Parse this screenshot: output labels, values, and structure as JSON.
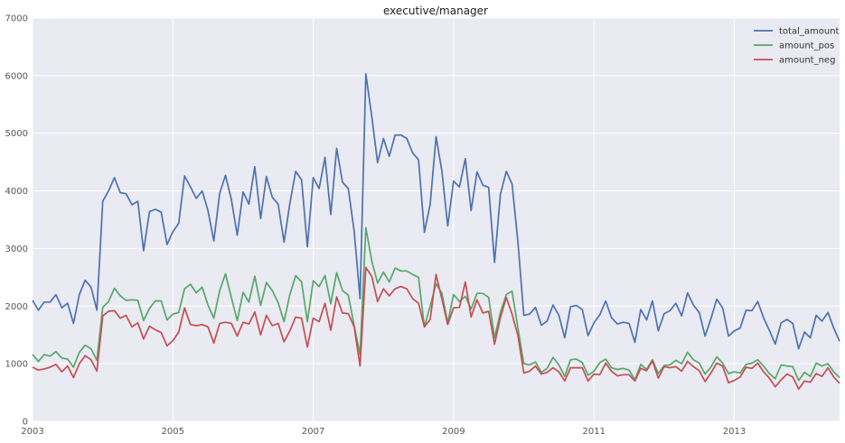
{
  "chart_data": {
    "type": "line",
    "title": "executive/manager",
    "xlabel": "",
    "ylabel": "",
    "xlim": [
      "2003-01",
      "2014-07"
    ],
    "ylim": [
      0,
      7000
    ],
    "grid": true,
    "legend_position": "top-right",
    "x_ticks": [
      "2003",
      "2005",
      "2007",
      "2009",
      "2011",
      "2013"
    ],
    "y_ticks": [
      "0",
      "1000",
      "2000",
      "3000",
      "4000",
      "5000",
      "6000",
      "7000"
    ],
    "x_start": "2003-01",
    "x_frequency": "monthly",
    "series": [
      {
        "name": "total_amount",
        "color": "#4c72b0",
        "values": [
          2100,
          1930,
          2070,
          2070,
          2200,
          1970,
          2050,
          1700,
          2200,
          2450,
          2330,
          1930,
          3820,
          4000,
          4230,
          3970,
          3950,
          3760,
          3820,
          2960,
          3640,
          3680,
          3630,
          3070,
          3290,
          3440,
          4260,
          4070,
          3870,
          4000,
          3660,
          3130,
          3960,
          4270,
          3850,
          3230,
          3980,
          3770,
          4420,
          3520,
          4250,
          3890,
          3770,
          3110,
          3780,
          4340,
          4190,
          3030,
          4230,
          4040,
          4580,
          3590,
          4740,
          4150,
          4040,
          3300,
          2130,
          6030,
          5300,
          4490,
          4910,
          4600,
          4970,
          4970,
          4910,
          4660,
          4540,
          3280,
          3770,
          4940,
          4340,
          3390,
          4170,
          4070,
          4560,
          3660,
          4330,
          4100,
          4060,
          2760,
          3940,
          4340,
          4120,
          3110,
          1840,
          1860,
          1980,
          1670,
          1740,
          2020,
          1840,
          1450,
          1990,
          2010,
          1940,
          1490,
          1710,
          1850,
          2090,
          1800,
          1690,
          1720,
          1700,
          1370,
          1940,
          1760,
          2090,
          1570,
          1870,
          1920,
          2050,
          1830,
          2230,
          2020,
          1890,
          1480,
          1780,
          2120,
          1970,
          1480,
          1570,
          1620,
          1930,
          1920,
          2080,
          1800,
          1580,
          1340,
          1710,
          1770,
          1700,
          1260,
          1550,
          1450,
          1840,
          1740,
          1890,
          1620,
          1390
        ]
      },
      {
        "name": "amount_pos",
        "color": "#55a868",
        "values": [
          1160,
          1040,
          1160,
          1130,
          1210,
          1100,
          1080,
          940,
          1200,
          1320,
          1260,
          1060,
          1980,
          2080,
          2310,
          2180,
          2100,
          2110,
          2100,
          1750,
          1960,
          2090,
          2090,
          1760,
          1860,
          1890,
          2300,
          2380,
          2230,
          2330,
          2020,
          1790,
          2270,
          2560,
          2150,
          1750,
          2240,
          2070,
          2520,
          2010,
          2410,
          2270,
          2060,
          1730,
          2200,
          2530,
          2420,
          1730,
          2440,
          2340,
          2530,
          2040,
          2580,
          2270,
          2190,
          1660,
          1160,
          3360,
          2790,
          2400,
          2590,
          2420,
          2660,
          2610,
          2610,
          2550,
          2500,
          1640,
          2000,
          2390,
          2220,
          1710,
          2200,
          2080,
          2170,
          1950,
          2220,
          2220,
          2150,
          1450,
          1890,
          2200,
          2260,
          1620,
          1000,
          980,
          1030,
          850,
          920,
          1110,
          980,
          780,
          1070,
          1080,
          1020,
          800,
          870,
          1020,
          1080,
          930,
          900,
          920,
          890,
          720,
          990,
          900,
          1070,
          830,
          970,
          980,
          1060,
          1000,
          1200,
          1070,
          1010,
          820,
          940,
          1120,
          1010,
          830,
          860,
          840,
          990,
          1010,
          1070,
          960,
          830,
          740,
          980,
          960,
          950,
          710,
          850,
          780,
          1010,
          960,
          1000,
          860,
          760
        ]
      },
      {
        "name": "amount_neg",
        "color": "#c44e52",
        "values": [
          940,
          890,
          910,
          940,
          990,
          860,
          960,
          760,
          1000,
          1140,
          1070,
          870,
          1830,
          1910,
          1920,
          1790,
          1840,
          1640,
          1710,
          1430,
          1650,
          1590,
          1540,
          1310,
          1400,
          1550,
          1970,
          1680,
          1660,
          1680,
          1640,
          1360,
          1700,
          1720,
          1700,
          1480,
          1720,
          1690,
          1900,
          1500,
          1840,
          1660,
          1700,
          1380,
          1570,
          1810,
          1790,
          1290,
          1790,
          1730,
          2050,
          1580,
          2160,
          1880,
          1870,
          1640,
          960,
          2670,
          2520,
          2080,
          2300,
          2180,
          2300,
          2340,
          2300,
          2130,
          2050,
          1640,
          1770,
          2550,
          2120,
          1680,
          1970,
          1980,
          2420,
          1810,
          2110,
          1880,
          1910,
          1340,
          1800,
          2150,
          1860,
          1490,
          840,
          870,
          960,
          820,
          850,
          930,
          860,
          700,
          930,
          930,
          930,
          700,
          820,
          810,
          1010,
          870,
          790,
          810,
          810,
          700,
          920,
          880,
          1050,
          750,
          950,
          930,
          950,
          870,
          1040,
          950,
          880,
          690,
          840,
          1010,
          960,
          670,
          710,
          770,
          940,
          920,
          1010,
          860,
          750,
          600,
          720,
          820,
          770,
          560,
          700,
          680,
          830,
          780,
          930,
          770,
          660
        ]
      }
    ]
  }
}
